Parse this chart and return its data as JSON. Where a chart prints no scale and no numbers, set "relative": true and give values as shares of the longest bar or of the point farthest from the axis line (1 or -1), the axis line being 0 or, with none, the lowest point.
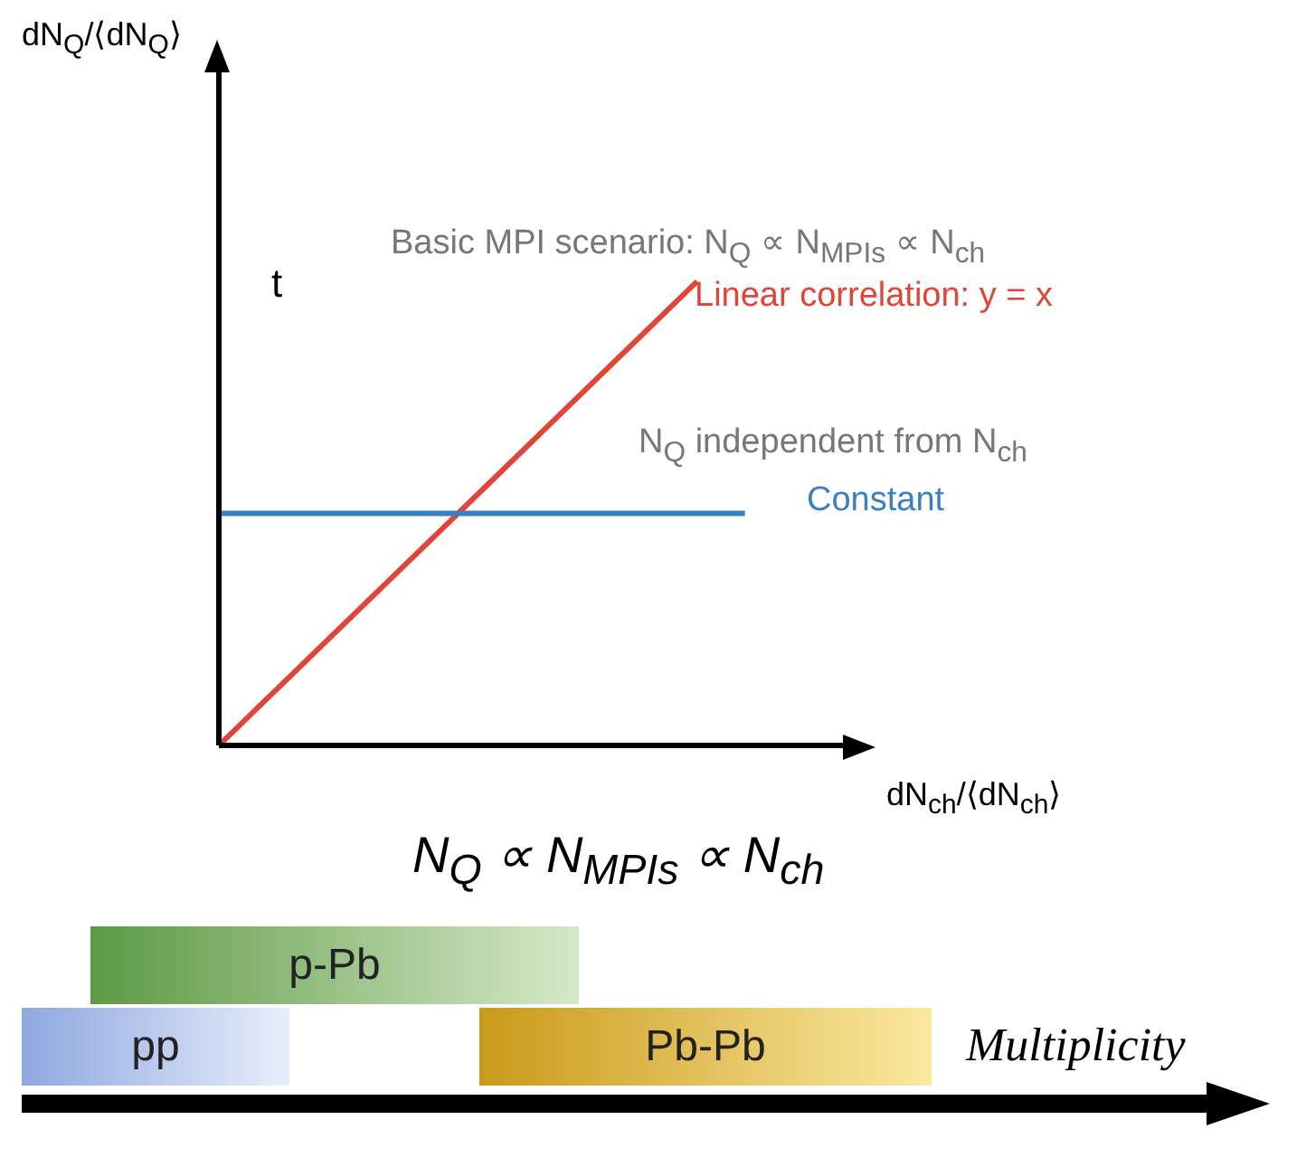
{
  "chart_data": [
    {
      "type": "line",
      "relative": true,
      "ylabel": "dN$_{Q}$/⟨dN$_{Q}$⟩",
      "xlabel": "dN$_{ch}$/⟨dN$_{ch}$⟩",
      "categories": [
        null,
        null,
        null,
        null,
        null,
        null,
        null,
        null,
        null,
        null,
        null,
        null,
        null,
        null
      ],
      "series": [
        {
          "name": "Linear correlation: y = x",
          "color": "#e0453a",
          "values": [
            0,
            0.1,
            0.2,
            0.3,
            0.4,
            0.5,
            0.6,
            0.7,
            0.8,
            0.9,
            1.0,
            null,
            null,
            null
          ]
        },
        {
          "name": "Constant",
          "color": "#3a7fc0",
          "values": [
            0.5,
            0.5,
            0.5,
            0.5,
            0.5,
            0.5,
            0.5,
            0.5,
            0.5,
            0.5,
            0.5,
            0.5,
            null,
            null
          ]
        }
      ],
      "annotations": [
        "Basic MPI scenario: N$_{Q}$ ∝ N$_{MPIs}$ ∝ N$_{ch}$",
        "N$_{Q}$ independent from N$_{ch}$",
        "N$_{Q}$ ∝ N$_{MPIs}$ ∝ N$_{ch}$",
        "t"
      ],
      "marker": "none"
    },
    {
      "type": "other",
      "categories": [
        "pp",
        "p-Pb",
        "Pb-Pb"
      ],
      "xlabel": "Multiplicity"
    }
  ]
}
